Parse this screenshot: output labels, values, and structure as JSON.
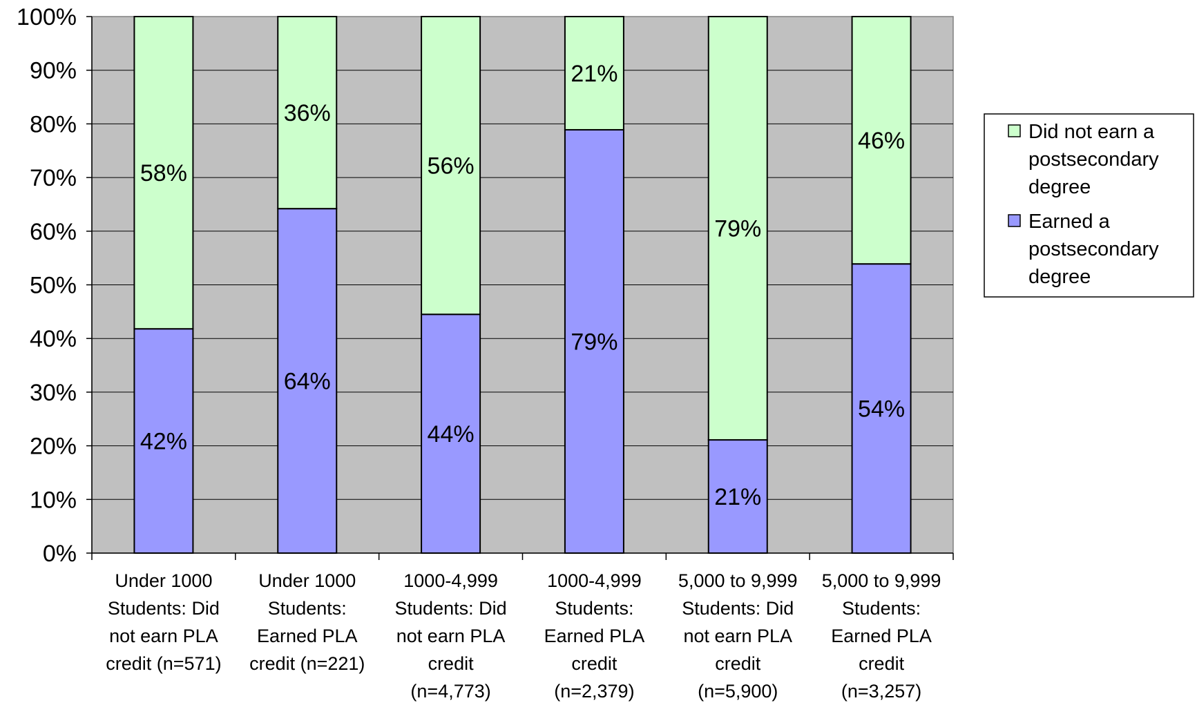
{
  "chart_data": {
    "type": "bar",
    "stacked": true,
    "ylim": [
      0,
      100
    ],
    "yticks": [
      "0%",
      "10%",
      "20%",
      "30%",
      "40%",
      "50%",
      "60%",
      "70%",
      "80%",
      "90%",
      "100%"
    ],
    "grid": true,
    "legend_position": "right",
    "categories": [
      [
        "Under 1000",
        "Students: Did",
        "not earn PLA",
        "credit (n=571)"
      ],
      [
        "Under 1000",
        "Students:",
        "Earned PLA",
        "credit (n=221)"
      ],
      [
        "1000-4,999",
        "Students: Did",
        "not earn PLA",
        "credit",
        "(n=4,773)"
      ],
      [
        "1000-4,999",
        "Students:",
        "Earned PLA",
        "credit",
        "(n=2,379)"
      ],
      [
        "5,000 to 9,999",
        "Students: Did",
        "not earn PLA",
        "credit",
        "(n=5,900)"
      ],
      [
        "5,000 to 9,999",
        "Students:",
        "Earned PLA",
        "credit",
        "(n=3,257)"
      ]
    ],
    "series": [
      {
        "name": "Earned a postsecondary degree",
        "legend_lines": [
          "Earned a",
          "postsecondary",
          "degree"
        ],
        "color": "#9999ff",
        "values": [
          41.8,
          64.2,
          44.5,
          78.9,
          21.1,
          53.9
        ],
        "labels": [
          "42%",
          "64%",
          "44%",
          "79%",
          "21%",
          "54%"
        ]
      },
      {
        "name": "Did not earn a postsecondary degree",
        "legend_lines": [
          "Did not earn a",
          "postsecondary",
          "degree"
        ],
        "color": "#ccffcc",
        "values": [
          58.2,
          35.8,
          55.5,
          21.1,
          78.9,
          46.1
        ],
        "labels": [
          "58%",
          "36%",
          "56%",
          "21%",
          "79%",
          "46%"
        ]
      }
    ],
    "plot_background": "#c0c0c0"
  }
}
